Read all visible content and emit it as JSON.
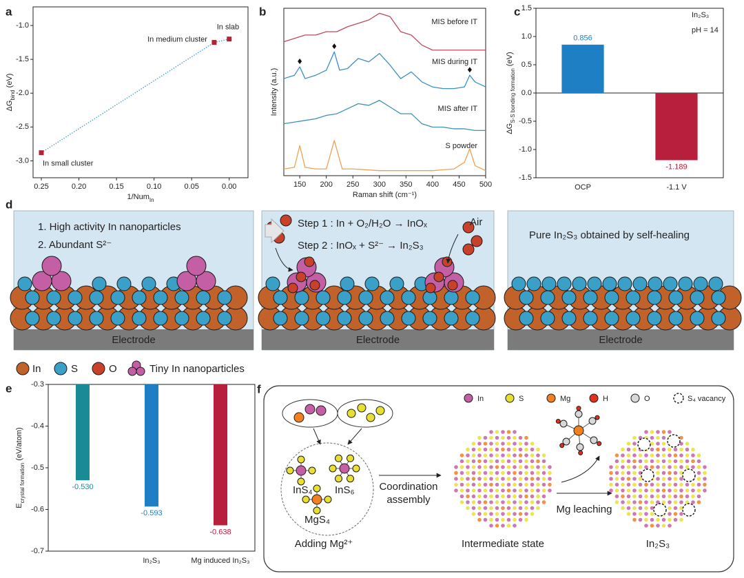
{
  "chart_data": [
    {
      "type": "scatter",
      "panel": "a",
      "x": [
        0.25,
        0.02,
        0.0
      ],
      "y": [
        -2.88,
        -1.25,
        -1.2
      ],
      "labels": [
        "In small cluster",
        "In medium cluster",
        "In slab"
      ],
      "color": "#b22234",
      "line_color": "#3a9ad0",
      "xlim": [
        0.261,
        -0.025
      ],
      "xticks": [
        0.25,
        {
          "value": 0.2,
          "label": "0.20"
        },
        0.15,
        {
          "value": 0.1,
          "label": "0.10"
        },
        0.05,
        {
          "value": 0,
          "label": "0.00"
        }
      ],
      "ylim": [
        -3.25,
        -0.725
      ],
      "yticks": [
        {
          "value": -1,
          "label": "-1.0"
        },
        -1.5,
        {
          "value": -2,
          "label": "-2.0"
        },
        -2.5,
        {
          "value": -3,
          "label": "-3.0"
        }
      ],
      "x_label": {
        "main": "1/Num",
        "sub": "In"
      },
      "y_label": {
        "main": "ΔG",
        "sub": "bind",
        "unit": " (eV)"
      }
    },
    {
      "type": "line",
      "panel": "b",
      "x_label": "Raman shift (cm⁻¹)",
      "y_label": "Intensity (a.u.)",
      "xlim": [
        120,
        500
      ],
      "xticks": [
        150,
        200,
        250,
        300,
        350,
        400,
        450,
        500
      ],
      "ylim": [
        0,
        100
      ],
      "series": [
        {
          "name": "MIS before IT",
          "color": "#c0485a",
          "x": [
            120,
            140,
            160,
            180,
            200,
            220,
            240,
            260,
            280,
            300,
            320,
            340,
            360,
            380,
            400,
            420,
            440,
            460,
            480,
            500
          ],
          "values": [
            80,
            82,
            84,
            84,
            86,
            86,
            89,
            91,
            93,
            97,
            95,
            86,
            84,
            78,
            75,
            75,
            75,
            75,
            75,
            75
          ]
        },
        {
          "name": "MIS during IT",
          "color": "#3a8fc4",
          "x": [
            120,
            140,
            150,
            160,
            180,
            200,
            215,
            225,
            240,
            260,
            280,
            300,
            320,
            340,
            360,
            380,
            400,
            420,
            440,
            460,
            470,
            480,
            500
          ],
          "values": [
            58,
            60,
            65,
            58,
            60,
            63,
            74,
            63,
            64,
            70,
            68,
            73,
            66,
            58,
            62,
            56,
            53,
            52,
            52,
            53,
            60,
            56,
            53
          ]
        },
        {
          "name": "MIS after IT",
          "color": "#3a92b4",
          "x": [
            120,
            140,
            160,
            180,
            200,
            220,
            240,
            260,
            280,
            300,
            320,
            340,
            360,
            380,
            400,
            420,
            440,
            460,
            480,
            500
          ],
          "values": [
            31,
            32,
            33,
            34,
            36,
            37,
            40,
            43,
            42,
            45,
            41,
            37,
            37,
            31,
            29,
            29,
            28,
            28,
            27,
            27
          ]
        },
        {
          "name": "S powder",
          "color": "#f0a050",
          "x": [
            120,
            140,
            150,
            160,
            180,
            200,
            215,
            230,
            250,
            300,
            400,
            440,
            460,
            470,
            480,
            500
          ],
          "values": [
            4,
            5,
            18,
            5,
            4,
            4,
            21,
            4,
            4,
            3,
            3,
            4,
            8,
            16,
            6,
            3
          ]
        }
      ]
    },
    {
      "type": "bar",
      "panel": "c",
      "categories": [
        "OCP",
        "-1.1 V"
      ],
      "values": [
        0.856,
        -1.189
      ],
      "colors": [
        "#1f7fc4",
        "#b81f3c"
      ],
      "ylim": [
        -1.5,
        1.5
      ],
      "yticks": [
        -1.5,
        {
          "value": -1,
          "label": "-1.0"
        },
        -0.5,
        {
          "value": 0,
          "label": "0.0"
        },
        0.5,
        {
          "value": 1,
          "label": "1.0"
        },
        1.5
      ],
      "y_label": {
        "main": "ΔG",
        "sub": "S-S bonding formation",
        "unit": " (eV)"
      },
      "annotations": [
        "In₂S₃",
        "pH = 14"
      ]
    },
    {
      "type": "bar",
      "panel": "e",
      "categories": [
        null,
        "In₂S₃",
        "Mg induced In₂S₃"
      ],
      "values": [
        -0.53,
        -0.593,
        -0.638
      ],
      "value_labels": [
        "-0.530",
        "-0.593",
        "-0.638"
      ],
      "colors": [
        "#1a8a96",
        "#1f7fc4",
        "#b81f3c"
      ],
      "ylim": [
        -0.7,
        -0.3
      ],
      "yticks": [
        -0.7,
        -0.6,
        -0.5,
        -0.4,
        -0.3
      ],
      "y_label": {
        "main": "E",
        "sub": "crystal formation",
        "unit": " (eV/atom)"
      }
    }
  ],
  "panel_d": {
    "panel": "d",
    "box1": [
      "1. High activity In nanoparticles",
      "2. Abundant S²⁻"
    ],
    "box2": [
      "Step 1 : In + O₂/H₂O → InOₓ",
      "Step 2 : InOₓ + S²⁻ → In₂S₃",
      "Air"
    ],
    "box3": "Pure In₂S₃ obtained by self-healing",
    "electrode": "Electrode",
    "legend": [
      "In",
      "S",
      "O",
      "Tiny In nanoparticles"
    ]
  },
  "panel_f": {
    "panel": "f",
    "legend": [
      "In",
      "S",
      "Mg",
      "H",
      "O",
      "S₄ vacancy"
    ],
    "species": [
      "InS₄",
      "InS₆",
      "MgS₄"
    ],
    "steps": [
      "Coordination",
      "assembly",
      "Mg leaching"
    ],
    "stages": [
      "Adding Mg²⁺",
      "Intermediate state",
      "In₂S₃"
    ]
  }
}
